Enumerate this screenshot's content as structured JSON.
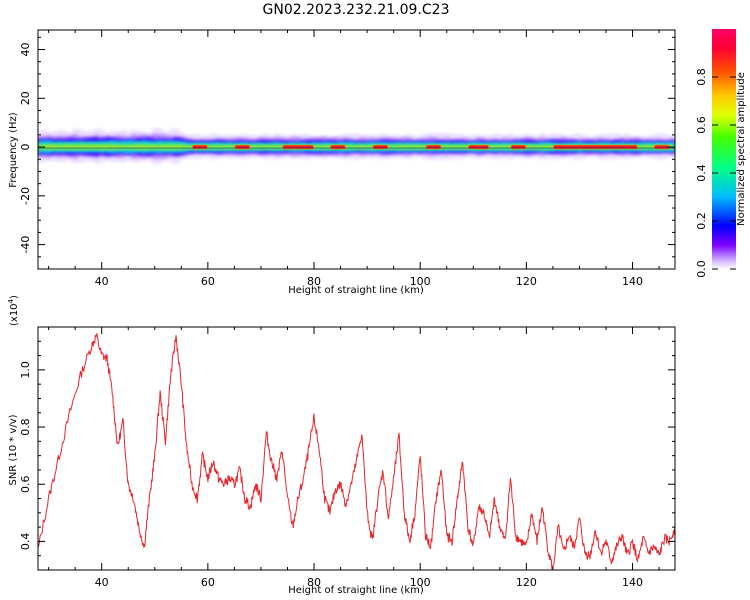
{
  "title": "GN02.2023.232.21.09.C23",
  "chart_data": [
    {
      "type": "heatmap",
      "xlabel": "Height of straight line (km)",
      "ylabel": "Frequency (Hz)",
      "xlim": [
        28,
        148
      ],
      "ylim": [
        -50,
        48
      ],
      "x_ticks": [
        40,
        60,
        80,
        100,
        120,
        140
      ],
      "y_ticks": [
        -40,
        -20,
        0,
        20,
        40
      ],
      "grid": false,
      "colorbar": {
        "label": "Normalized spectral amplitude",
        "range": [
          0,
          1
        ],
        "ticks": [
          0.0,
          0.2,
          0.4,
          0.6,
          0.8
        ],
        "tick_labels": [
          "0.0",
          "0.2",
          "0.4",
          "0.6",
          "0.8"
        ],
        "colormap": [
          "#ffffff",
          "#7e00ff",
          "#0000ff",
          "#00bbff",
          "#00ff66",
          "#88ff00",
          "#ffff00",
          "#ffaa00",
          "#ff3300",
          "#ff0055"
        ]
      },
      "band": {
        "center_hz": 0,
        "halfwidth_hz": [
          4,
          3
        ],
        "x_range_km": [
          28,
          148
        ],
        "note_peak_segments_km": [
          [
            57,
            60
          ],
          [
            65,
            68
          ],
          [
            74,
            80
          ],
          [
            83,
            86
          ],
          [
            91,
            94
          ],
          [
            101,
            104
          ],
          [
            109,
            113
          ],
          [
            117,
            120
          ],
          [
            125,
            141
          ],
          [
            144,
            147
          ]
        ]
      }
    },
    {
      "type": "line",
      "xlabel": "Height of straight line (km)",
      "ylabel": "SNR (10 * v/v)",
      "yscale_label": "(x10",
      "yscale_exp": "4",
      "yscale_close": ")",
      "xlim": [
        28,
        148
      ],
      "ylim": [
        0.3,
        1.15
      ],
      "x_ticks": [
        40,
        60,
        80,
        100,
        120,
        140
      ],
      "y_ticks": [
        0.4,
        0.6,
        0.8,
        1.0
      ],
      "y_tick_labels": [
        "0.4",
        "0.6",
        "0.8",
        "1.0"
      ],
      "grid": false,
      "line_color": "#e8262a",
      "series": [
        {
          "x": [
            28,
            30,
            32,
            34,
            36,
            38,
            39,
            40,
            41,
            42,
            43,
            44,
            45,
            46,
            47,
            48,
            49,
            50,
            51,
            52,
            53,
            54,
            55,
            56,
            57,
            58,
            59,
            60,
            61,
            62,
            63,
            64,
            65,
            66,
            67,
            68,
            69,
            70,
            71,
            72,
            73,
            74,
            75,
            76,
            77,
            78,
            79,
            80,
            81,
            82,
            83,
            84,
            85,
            86,
            87,
            88,
            89,
            90,
            91,
            92,
            93,
            94,
            95,
            96,
            97,
            98,
            99,
            100,
            101,
            102,
            103,
            104,
            105,
            106,
            107,
            108,
            109,
            110,
            111,
            112,
            113,
            114,
            115,
            116,
            117,
            118,
            119,
            120,
            121,
            122,
            123,
            124,
            125,
            126,
            127,
            128,
            129,
            130,
            131,
            132,
            133,
            134,
            135,
            136,
            137,
            138,
            139,
            140,
            141,
            142,
            143,
            144,
            145,
            146,
            147,
            148
          ],
          "values": [
            0.37,
            0.55,
            0.7,
            0.85,
            0.98,
            1.08,
            1.12,
            1.05,
            1.04,
            0.92,
            0.73,
            0.82,
            0.6,
            0.55,
            0.45,
            0.38,
            0.55,
            0.7,
            0.92,
            0.75,
            0.98,
            1.12,
            0.95,
            0.73,
            0.6,
            0.55,
            0.7,
            0.62,
            0.68,
            0.62,
            0.6,
            0.62,
            0.6,
            0.65,
            0.55,
            0.52,
            0.6,
            0.55,
            0.78,
            0.68,
            0.62,
            0.72,
            0.55,
            0.45,
            0.55,
            0.62,
            0.72,
            0.83,
            0.72,
            0.55,
            0.5,
            0.58,
            0.6,
            0.53,
            0.6,
            0.68,
            0.78,
            0.5,
            0.4,
            0.55,
            0.65,
            0.48,
            0.62,
            0.77,
            0.5,
            0.4,
            0.5,
            0.7,
            0.42,
            0.38,
            0.55,
            0.65,
            0.42,
            0.4,
            0.55,
            0.68,
            0.45,
            0.38,
            0.52,
            0.5,
            0.41,
            0.55,
            0.45,
            0.4,
            0.62,
            0.42,
            0.4,
            0.38,
            0.5,
            0.4,
            0.52,
            0.38,
            0.3,
            0.45,
            0.36,
            0.42,
            0.38,
            0.48,
            0.36,
            0.35,
            0.44,
            0.36,
            0.4,
            0.33,
            0.38,
            0.42,
            0.35,
            0.4,
            0.33,
            0.41,
            0.36,
            0.38,
            0.35,
            0.41,
            0.4,
            0.45
          ]
        }
      ]
    }
  ]
}
